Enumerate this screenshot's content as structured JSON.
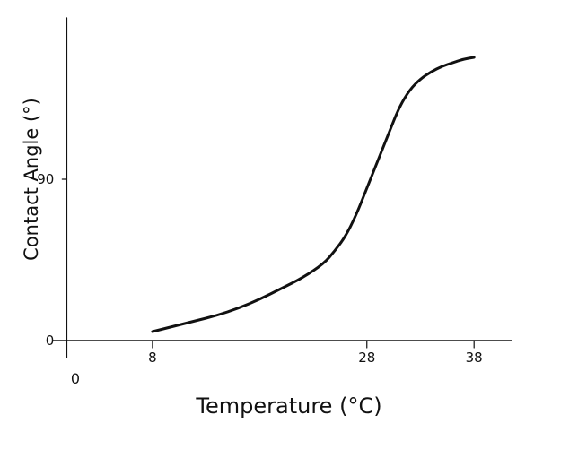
{
  "chart_data": {
    "type": "line",
    "title": "",
    "xlabel": "Temperature (°C)",
    "ylabel": "Contact Angle (°)",
    "xlim": [
      -1.2,
      41.5
    ],
    "ylim": [
      0,
      180
    ],
    "grid": false,
    "legend": "none",
    "x_origin_label": "0",
    "x_ticks": [
      {
        "value": 8,
        "label": "8"
      },
      {
        "value": 28,
        "label": "28"
      },
      {
        "value": 38,
        "label": "38"
      }
    ],
    "y_ticks": [
      {
        "value": 0,
        "label": "0"
      },
      {
        "value": 90,
        "label": "90"
      }
    ],
    "series": [
      {
        "color": "#111111",
        "x": [
          8,
          10,
          12,
          14,
          16,
          18,
          20,
          22,
          24,
          25,
          26,
          27,
          28,
          29,
          30,
          31,
          32,
          33,
          34,
          35,
          36,
          37,
          38
        ],
        "y": [
          5,
          8,
          11,
          14,
          18,
          23,
          29,
          35,
          43,
          50,
          58,
          70,
          85,
          100,
          115,
          130,
          140,
          146,
          150,
          153,
          155,
          157,
          158
        ]
      }
    ]
  }
}
